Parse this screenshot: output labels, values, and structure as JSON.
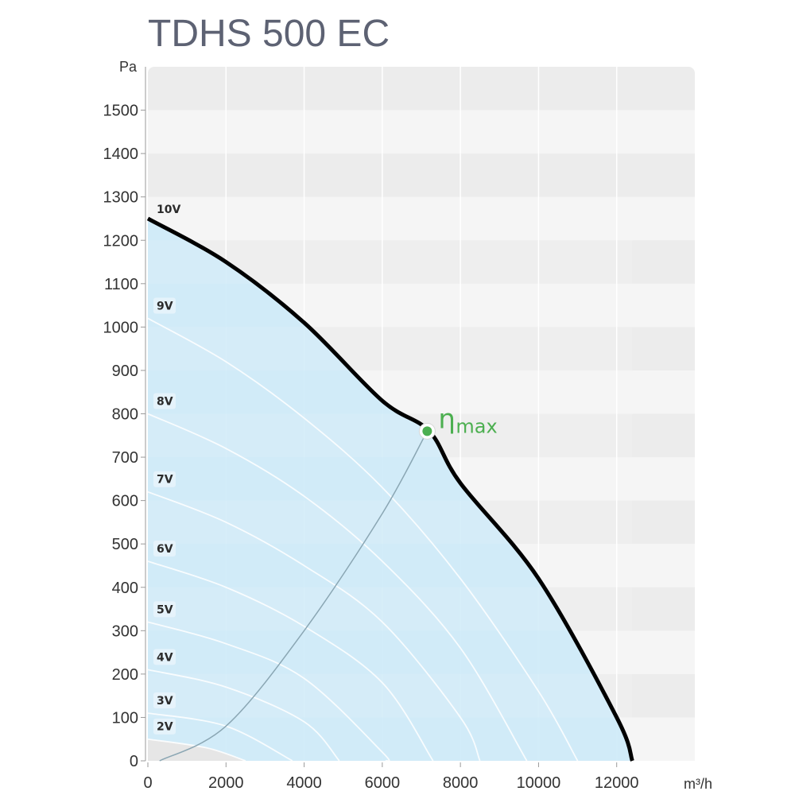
{
  "chart_data": {
    "type": "line",
    "title": "TDHS 500 EC",
    "xlabel": "m³/h",
    "ylabel": "Pa",
    "xlim": [
      0,
      14000
    ],
    "ylim": [
      0,
      1600
    ],
    "xticks": [
      0,
      2000,
      4000,
      6000,
      8000,
      10000,
      12000
    ],
    "xtick_labels": [
      "0",
      "2000",
      "4000",
      "6000",
      "8000",
      "10000",
      "12000"
    ],
    "yticks": [
      0,
      100,
      200,
      300,
      400,
      500,
      600,
      700,
      800,
      900,
      1000,
      1100,
      1200,
      1300,
      1400,
      1500
    ],
    "ytick_labels": [
      "0",
      "100",
      "200",
      "300",
      "400",
      "500",
      "600",
      "700",
      "800",
      "900",
      "1000",
      "1100",
      "1200",
      "1300",
      "1400",
      "1500"
    ],
    "grid": true,
    "series": [
      {
        "name": "10V",
        "x": [
          0,
          2000,
          4000,
          6000,
          7200,
          8000,
          10000,
          12000,
          12400
        ],
        "y": [
          1250,
          1150,
          1010,
          830,
          760,
          640,
          420,
          100,
          0
        ]
      },
      {
        "name": "9V",
        "x": [
          0,
          2000,
          4000,
          6000,
          8000,
          10000,
          11000
        ],
        "y": [
          1020,
          920,
          790,
          630,
          420,
          160,
          0
        ]
      },
      {
        "name": "8V",
        "x": [
          0,
          2000,
          4000,
          6000,
          8000,
          9700
        ],
        "y": [
          800,
          720,
          610,
          460,
          260,
          0
        ]
      },
      {
        "name": "7V",
        "x": [
          0,
          2000,
          4000,
          6000,
          8000,
          8500
        ],
        "y": [
          620,
          550,
          450,
          320,
          100,
          0
        ]
      },
      {
        "name": "6V",
        "x": [
          0,
          2000,
          4000,
          6000,
          7300
        ],
        "y": [
          460,
          400,
          310,
          180,
          0
        ]
      },
      {
        "name": "5V",
        "x": [
          0,
          2000,
          4000,
          6000,
          6100
        ],
        "y": [
          320,
          270,
          190,
          20,
          0
        ]
      },
      {
        "name": "4V",
        "x": [
          0,
          2000,
          4000,
          4900
        ],
        "y": [
          210,
          170,
          90,
          0
        ]
      },
      {
        "name": "3V",
        "x": [
          0,
          2000,
          3700
        ],
        "y": [
          110,
          80,
          0
        ]
      },
      {
        "name": "2V",
        "x": [
          0,
          1500,
          2500
        ],
        "y": [
          50,
          30,
          0
        ]
      }
    ],
    "efficiency_curve": {
      "x": [
        300,
        2000,
        4000,
        6000,
        7150
      ],
      "y": [
        0,
        80,
        300,
        570,
        760
      ]
    },
    "annotations": [
      {
        "text": "η",
        "subscript": "max",
        "x": 7150,
        "y": 760,
        "color": "#4caf50"
      }
    ],
    "colors": {
      "fill": "#cdeaf8",
      "band_light": "#f5f5f5",
      "band_dark": "#ececec",
      "main_curve": "#000000",
      "efficiency_point": "#4caf50"
    }
  }
}
